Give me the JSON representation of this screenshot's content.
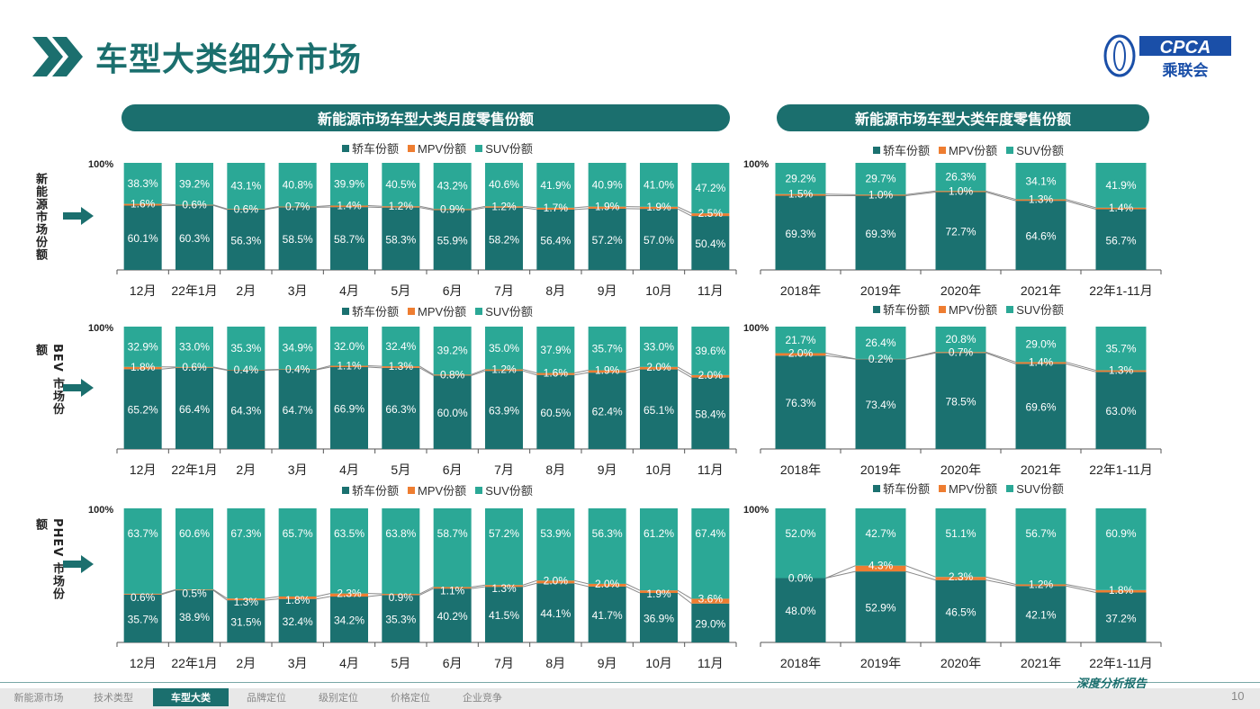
{
  "page": {
    "title": "车型大类细分市场",
    "logo_text": "CPCA",
    "logo_sub": "乘联会",
    "report_label": "深度分析报告",
    "page_number": "10"
  },
  "headers": {
    "monthly": "新能源市场车型大类月度零售份额",
    "yearly": "新能源市场车型大类年度零售份额"
  },
  "rows": [
    {
      "label": "新能源市场份额"
    },
    {
      "label": "BEV 市场份额"
    },
    {
      "label": "PHEV 市场份额"
    }
  ],
  "legend": [
    "轿车份额",
    "MPV份额",
    "SUV份额"
  ],
  "colors": {
    "car": "#1b7170",
    "mpv": "#ee7d31",
    "suv": "#2ba896",
    "brand": "#1b6f6e"
  },
  "nav": [
    {
      "label": "新能源市场",
      "active": false
    },
    {
      "label": "技术类型",
      "active": false
    },
    {
      "label": "车型大类",
      "active": true
    },
    {
      "label": "品牌定位",
      "active": false
    },
    {
      "label": "级别定位",
      "active": false
    },
    {
      "label": "价格定位",
      "active": false
    },
    {
      "label": "企业竞争",
      "active": false
    }
  ],
  "chart_data": [
    {
      "type": "bar",
      "stacked": true,
      "ytick_top": "100%",
      "categories": [
        "12月",
        "22年1月",
        "2月",
        "3月",
        "4月",
        "5月",
        "6月",
        "7月",
        "8月",
        "9月",
        "10月",
        "11月"
      ],
      "series": [
        {
          "name": "轿车份额",
          "values": [
            60.1,
            60.3,
            56.3,
            58.5,
            58.7,
            58.3,
            55.9,
            58.2,
            56.4,
            57.2,
            57.0,
            50.4
          ]
        },
        {
          "name": "MPV份额",
          "values": [
            1.6,
            0.6,
            0.6,
            0.7,
            1.4,
            1.2,
            0.9,
            1.2,
            1.7,
            1.9,
            1.9,
            2.5
          ]
        },
        {
          "name": "SUV份额",
          "values": [
            38.3,
            39.2,
            43.1,
            40.8,
            39.9,
            40.5,
            43.2,
            40.6,
            41.9,
            40.9,
            41.0,
            47.2
          ]
        }
      ]
    },
    {
      "type": "bar",
      "stacked": true,
      "ytick_top": "100%",
      "categories": [
        "2018年",
        "2019年",
        "2020年",
        "2021年",
        "22年1-11月"
      ],
      "series": [
        {
          "name": "轿车份额",
          "values": [
            69.3,
            69.3,
            72.7,
            64.6,
            56.7
          ]
        },
        {
          "name": "MPV份额",
          "values": [
            1.5,
            1.0,
            1.0,
            1.3,
            1.4
          ]
        },
        {
          "name": "SUV份额",
          "values": [
            29.2,
            29.7,
            26.3,
            34.1,
            41.9
          ]
        }
      ]
    },
    {
      "type": "bar",
      "stacked": true,
      "ytick_top": "100%",
      "categories": [
        "12月",
        "22年1月",
        "2月",
        "3月",
        "4月",
        "5月",
        "6月",
        "7月",
        "8月",
        "9月",
        "10月",
        "11月"
      ],
      "series": [
        {
          "name": "轿车份额",
          "values": [
            65.2,
            66.4,
            64.3,
            64.7,
            66.9,
            66.3,
            60.0,
            63.9,
            60.5,
            62.4,
            65.1,
            58.4
          ]
        },
        {
          "name": "MPV份额",
          "values": [
            1.8,
            0.6,
            0.4,
            0.4,
            1.1,
            1.3,
            0.8,
            1.2,
            1.6,
            1.9,
            2.0,
            2.0
          ]
        },
        {
          "name": "SUV份额",
          "values": [
            32.9,
            33.0,
            35.3,
            34.9,
            32.0,
            32.4,
            39.2,
            35.0,
            37.9,
            35.7,
            33.0,
            39.6
          ]
        }
      ]
    },
    {
      "type": "bar",
      "stacked": true,
      "ytick_top": "100%",
      "categories": [
        "2018年",
        "2019年",
        "2020年",
        "2021年",
        "22年1-11月"
      ],
      "series": [
        {
          "name": "轿车份额",
          "values": [
            76.3,
            73.4,
            78.5,
            69.6,
            63.0
          ]
        },
        {
          "name": "MPV份额",
          "values": [
            2.0,
            0.2,
            0.7,
            1.4,
            1.3
          ]
        },
        {
          "name": "SUV份额",
          "values": [
            21.7,
            26.4,
            20.8,
            29.0,
            35.7
          ]
        }
      ]
    },
    {
      "type": "bar",
      "stacked": true,
      "ytick_top": "100%",
      "categories": [
        "12月",
        "22年1月",
        "2月",
        "3月",
        "4月",
        "5月",
        "6月",
        "7月",
        "8月",
        "9月",
        "10月",
        "11月"
      ],
      "series": [
        {
          "name": "轿车份额",
          "values": [
            35.7,
            38.9,
            31.5,
            32.4,
            34.2,
            35.3,
            40.2,
            41.5,
            44.1,
            41.7,
            36.9,
            29.0
          ]
        },
        {
          "name": "MPV份额",
          "values": [
            0.6,
            0.5,
            1.3,
            1.8,
            2.3,
            0.9,
            1.1,
            1.3,
            2.0,
            2.0,
            1.9,
            3.6
          ]
        },
        {
          "name": "SUV份额",
          "values": [
            63.7,
            60.6,
            67.3,
            65.7,
            63.5,
            63.8,
            58.7,
            57.2,
            53.9,
            56.3,
            61.2,
            67.4
          ]
        }
      ]
    },
    {
      "type": "bar",
      "stacked": true,
      "ytick_top": "100%",
      "categories": [
        "2018年",
        "2019年",
        "2020年",
        "2021年",
        "22年1-11月"
      ],
      "series": [
        {
          "name": "轿车份额",
          "values": [
            48.0,
            52.9,
            46.5,
            42.1,
            37.2
          ]
        },
        {
          "name": "MPV份额",
          "values": [
            0.0,
            4.3,
            2.3,
            1.2,
            1.8
          ]
        },
        {
          "name": "SUV份额",
          "values": [
            52.0,
            42.7,
            51.1,
            56.7,
            60.9
          ]
        }
      ]
    }
  ]
}
